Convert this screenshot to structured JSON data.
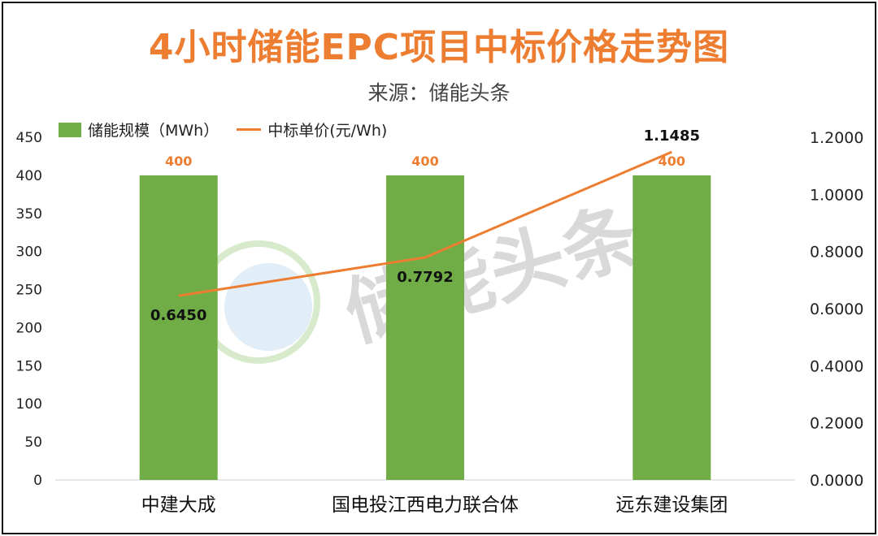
{
  "title": "4小时储能EPC项目中标价格走势图",
  "subtitle": "来源：储能头条",
  "watermark": "储能头条",
  "colors": {
    "bar": "#70ad47",
    "line": "#ed7d31",
    "title": "#ed7d31"
  },
  "chart_data": {
    "type": "bar",
    "title": "4小时储能EPC项目中标价格走势图",
    "categories": [
      "中建大成",
      "国电投江西电力联合体",
      "远东建设集团"
    ],
    "series": [
      {
        "name": "储能规模（MWh）",
        "type": "bar",
        "axis": "left",
        "values": [
          400,
          400,
          400
        ],
        "labels": [
          "400",
          "400",
          "400"
        ]
      },
      {
        "name": "中标单价(元/Wh)",
        "type": "line",
        "axis": "right",
        "values": [
          0.645,
          0.7792,
          1.1485
        ],
        "labels": [
          "0.6450",
          "0.7792",
          "1.1485"
        ]
      }
    ],
    "y_left": {
      "min": 0,
      "max": 450,
      "step": 50,
      "ticks": [
        "0",
        "50",
        "100",
        "150",
        "200",
        "250",
        "300",
        "350",
        "400",
        "450"
      ]
    },
    "y_right": {
      "min": 0,
      "max": 1.2,
      "step": 0.2,
      "ticks": [
        "0.0000",
        "0.2000",
        "0.4000",
        "0.6000",
        "0.8000",
        "1.0000",
        "1.2000"
      ]
    },
    "grid": false,
    "legend": "top-left"
  }
}
